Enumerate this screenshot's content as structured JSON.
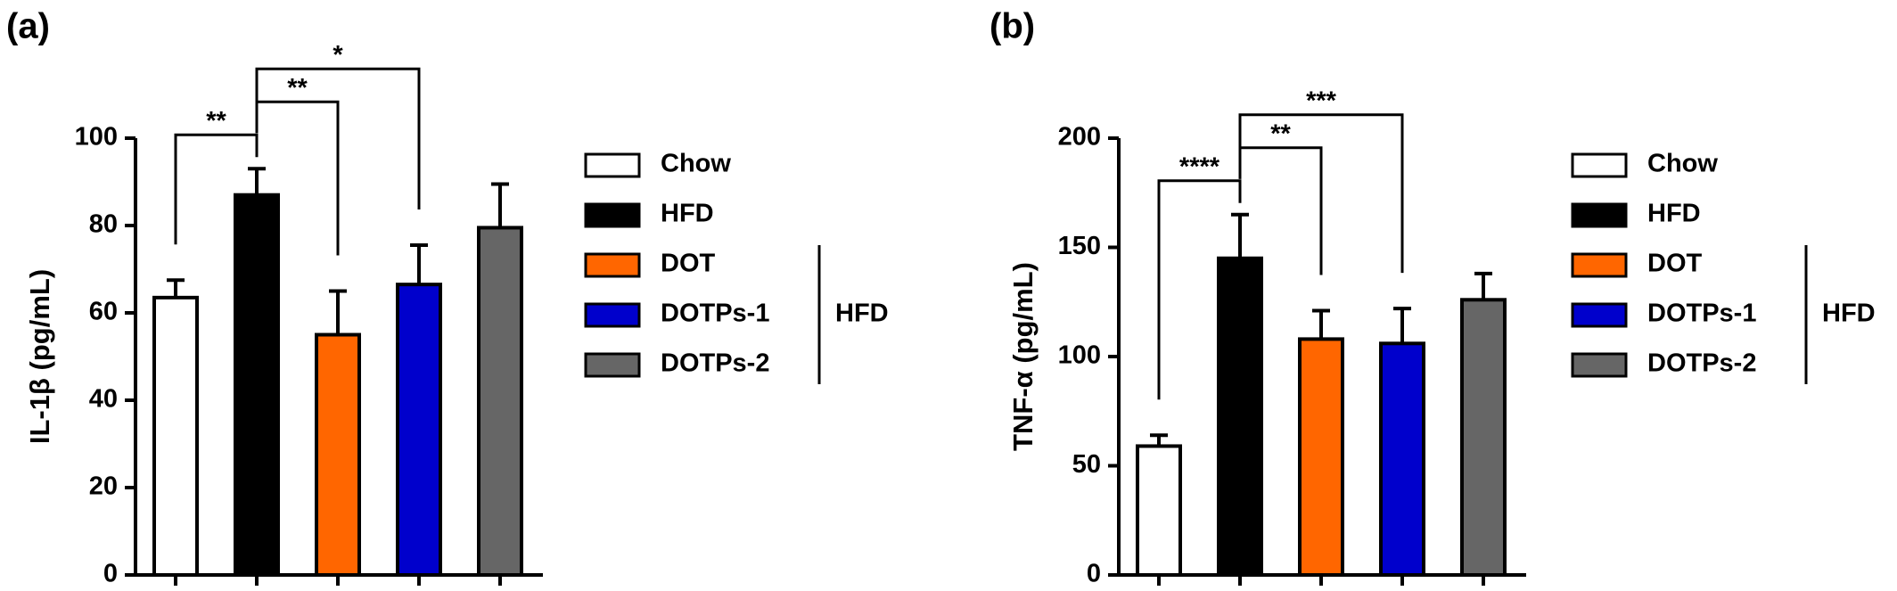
{
  "chart_data": [
    {
      "type": "bar",
      "panel": "(a)",
      "ylabel": "IL-1β (pg/mL)",
      "categories": [
        "Chow",
        "HFD",
        "DOT",
        "DOTPs-1",
        "DOTPs-2"
      ],
      "colors": [
        "#ffffff",
        "#000000",
        "#ff6600",
        "#0000cc",
        "#666666"
      ],
      "values": [
        63.5,
        87,
        55,
        66.5,
        79.5
      ],
      "errors": [
        4,
        6,
        10,
        9,
        10
      ],
      "ylim": [
        0,
        100
      ],
      "yticks": [
        0,
        20,
        40,
        60,
        80,
        100
      ],
      "annotations": [
        {
          "label": "**",
          "from": "Chow",
          "to": "HFD"
        },
        {
          "label": "**",
          "from": "HFD",
          "to": "DOT"
        },
        {
          "label": "*",
          "from": "HFD",
          "to": "DOTPs-1"
        }
      ],
      "group": {
        "label": "HFD",
        "members": [
          "DOT",
          "DOTPs-1",
          "DOTPs-2"
        ]
      }
    },
    {
      "type": "bar",
      "panel": "(b)",
      "ylabel": "TNF-α (pg/mL)",
      "categories": [
        "Chow",
        "HFD",
        "DOT",
        "DOTPs-1",
        "DOTPs-2"
      ],
      "colors": [
        "#ffffff",
        "#000000",
        "#ff6600",
        "#0000cc",
        "#666666"
      ],
      "values": [
        59,
        145,
        108,
        106,
        126
      ],
      "errors": [
        5,
        20,
        13,
        16,
        12
      ],
      "ylim": [
        0,
        200
      ],
      "yticks": [
        0,
        50,
        100,
        150,
        200
      ],
      "annotations": [
        {
          "label": "****",
          "from": "Chow",
          "to": "HFD"
        },
        {
          "label": "**",
          "from": "HFD",
          "to": "DOT"
        },
        {
          "label": "***",
          "from": "HFD",
          "to": "DOTPs-1"
        }
      ],
      "group": {
        "label": "HFD",
        "members": [
          "DOT",
          "DOTPs-1",
          "DOTPs-2"
        ]
      }
    }
  ]
}
